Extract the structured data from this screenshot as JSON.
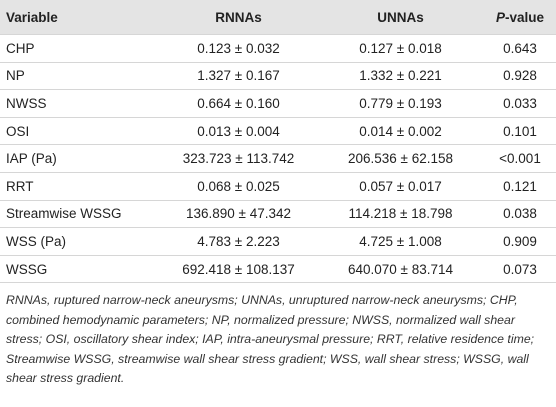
{
  "table": {
    "header": [
      "Variable",
      "RNNAs",
      "UNNAs",
      "P-value"
    ],
    "rows": [
      [
        "CHP",
        "0.123 ± 0.032",
        "0.127 ± 0.018",
        "0.643"
      ],
      [
        "NP",
        "1.327 ± 0.167",
        "1.332 ± 0.221",
        "0.928"
      ],
      [
        "NWSS",
        "0.664 ± 0.160",
        "0.779 ± 0.193",
        "0.033"
      ],
      [
        "OSI",
        "0.013 ± 0.004",
        "0.014 ± 0.002",
        "0.101"
      ],
      [
        "IAP (Pa)",
        "323.723 ± 113.742",
        "206.536 ± 62.158",
        "<0.001"
      ],
      [
        "RRT",
        "0.068 ± 0.025",
        "0.057 ± 0.017",
        "0.121"
      ],
      [
        "Streamwise WSSG",
        "136.890 ± 47.342",
        "114.218 ± 18.798",
        "0.038"
      ],
      [
        "WSS (Pa)",
        "4.783 ± 2.223",
        "4.725 ± 1.008",
        "0.909"
      ],
      [
        "WSSG",
        "692.418 ± 108.137",
        "640.070 ± 83.714",
        "0.073"
      ]
    ],
    "footnote": "RNNAs, ruptured narrow-neck aneurysms; UNNAs, unruptured narrow-neck aneurysms; CHP, combined hemodynamic parameters; NP, normalized pressure; NWSS, normalized wall shear stress; OSI, oscillatory shear index; IAP, intra-aneurysmal pressure; RRT, relative residence time; Streamwise WSSG, streamwise wall shear stress gradient; WSS, wall shear stress; WSSG, wall shear stress gradient."
  }
}
